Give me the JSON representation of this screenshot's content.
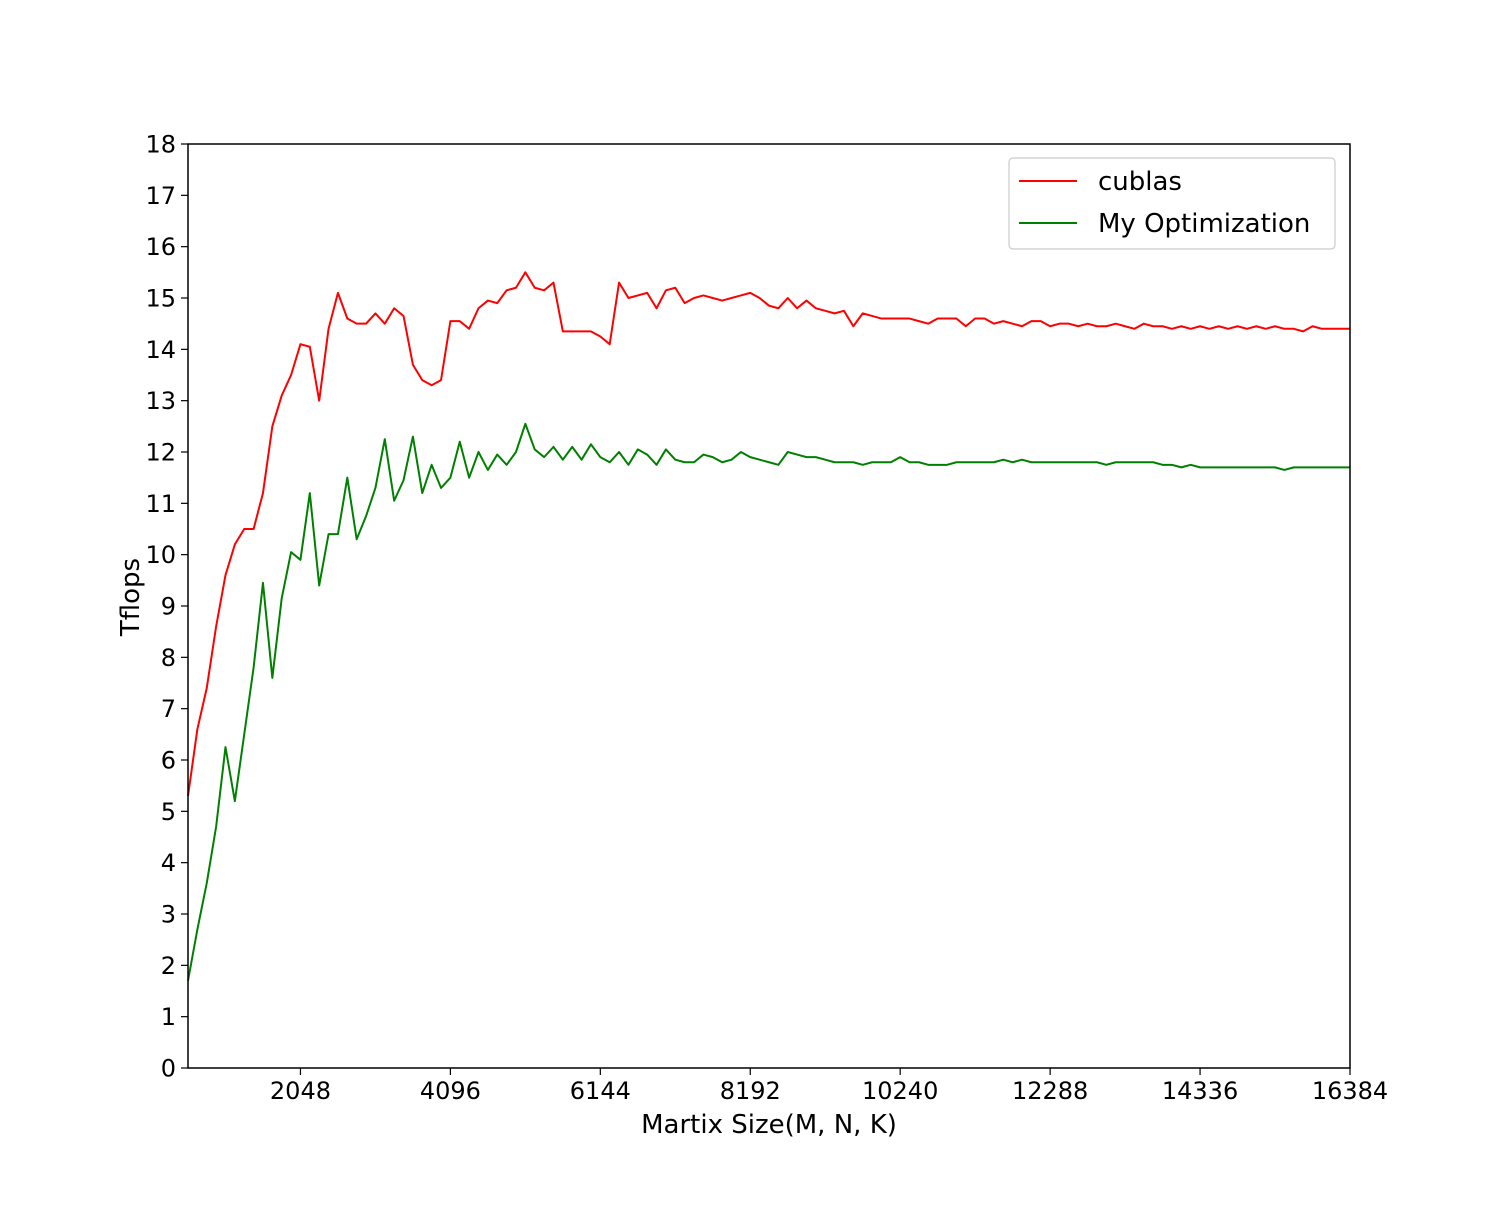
{
  "chart_data": {
    "type": "line",
    "title": "",
    "xlabel": "Martix Size(M, N, K)",
    "ylabel": "Tflops",
    "xlim": [
      512,
      16384
    ],
    "ylim": [
      0,
      18
    ],
    "xticks": [
      2048,
      4096,
      6144,
      8192,
      10240,
      12288,
      14336,
      16384
    ],
    "yticks": [
      0,
      1,
      2,
      3,
      4,
      5,
      6,
      7,
      8,
      9,
      10,
      11,
      12,
      13,
      14,
      15,
      16,
      17,
      18
    ],
    "grid": false,
    "legend_position": "top-right",
    "x_start": 512,
    "x_step": 128,
    "series": [
      {
        "name": "cublas",
        "color": "#ff0000",
        "values": [
          5.3,
          6.6,
          7.4,
          8.6,
          9.6,
          10.2,
          10.5,
          10.5,
          11.2,
          12.5,
          13.1,
          13.5,
          14.1,
          14.05,
          13.0,
          14.4,
          15.1,
          14.6,
          14.5,
          14.5,
          14.7,
          14.5,
          14.8,
          14.65,
          13.7,
          13.4,
          13.3,
          13.4,
          14.55,
          14.55,
          14.4,
          14.8,
          14.95,
          14.9,
          15.15,
          15.2,
          15.5,
          15.2,
          15.15,
          15.3,
          14.35,
          14.35,
          14.35,
          14.35,
          14.25,
          14.1,
          15.3,
          15.0,
          15.05,
          15.1,
          14.8,
          15.15,
          15.2,
          14.9,
          15.0,
          15.05,
          15.0,
          14.95,
          15.0,
          15.05,
          15.1,
          15.0,
          14.85,
          14.8,
          15.0,
          14.8,
          14.95,
          14.8,
          14.75,
          14.7,
          14.75,
          14.45,
          14.7,
          14.65,
          14.6,
          14.6,
          14.6,
          14.6,
          14.55,
          14.5,
          14.6,
          14.6,
          14.6,
          14.45,
          14.6,
          14.6,
          14.5,
          14.55,
          14.5,
          14.45,
          14.55,
          14.55,
          14.45,
          14.5,
          14.5,
          14.45,
          14.5,
          14.45,
          14.45,
          14.5,
          14.45,
          14.4,
          14.5,
          14.45,
          14.45,
          14.4,
          14.45,
          14.4,
          14.45,
          14.4,
          14.45,
          14.4,
          14.45,
          14.4,
          14.45,
          14.4,
          14.45,
          14.4,
          14.4,
          14.35,
          14.45,
          14.4,
          14.4,
          14.4,
          14.4
        ]
      },
      {
        "name": "My Optimization",
        "color": "#008000",
        "values": [
          1.7,
          2.7,
          3.6,
          4.7,
          6.25,
          5.2,
          6.5,
          7.8,
          9.45,
          7.6,
          9.15,
          10.05,
          9.9,
          11.2,
          9.4,
          10.4,
          10.4,
          11.5,
          10.3,
          10.75,
          11.3,
          12.25,
          11.05,
          11.45,
          12.3,
          11.2,
          11.75,
          11.3,
          11.5,
          12.2,
          11.5,
          12.0,
          11.65,
          11.95,
          11.75,
          12.0,
          12.55,
          12.05,
          11.9,
          12.1,
          11.85,
          12.1,
          11.85,
          12.15,
          11.9,
          11.8,
          12.0,
          11.75,
          12.05,
          11.95,
          11.75,
          12.05,
          11.85,
          11.8,
          11.8,
          11.95,
          11.9,
          11.8,
          11.85,
          12.0,
          11.9,
          11.85,
          11.8,
          11.75,
          12.0,
          11.95,
          11.9,
          11.9,
          11.85,
          11.8,
          11.8,
          11.8,
          11.75,
          11.8,
          11.8,
          11.8,
          11.9,
          11.8,
          11.8,
          11.75,
          11.75,
          11.75,
          11.8,
          11.8,
          11.8,
          11.8,
          11.8,
          11.85,
          11.8,
          11.85,
          11.8,
          11.8,
          11.8,
          11.8,
          11.8,
          11.8,
          11.8,
          11.8,
          11.75,
          11.8,
          11.8,
          11.8,
          11.8,
          11.8,
          11.75,
          11.75,
          11.7,
          11.75,
          11.7,
          11.7,
          11.7,
          11.7,
          11.7,
          11.7,
          11.7,
          11.7,
          11.7,
          11.65,
          11.7,
          11.7,
          11.7,
          11.7,
          11.7,
          11.7,
          11.7
        ]
      }
    ]
  }
}
